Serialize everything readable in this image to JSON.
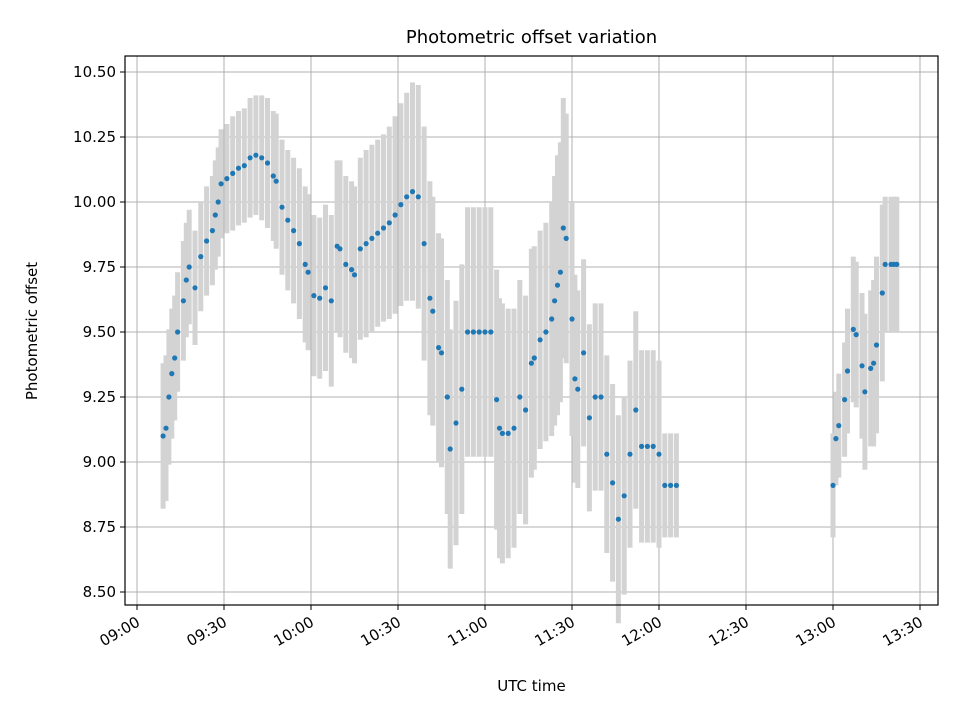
{
  "chart_data": {
    "type": "scatter",
    "title": "Photometric offset variation",
    "xlabel": "UTC time",
    "ylabel": "Photometric offset",
    "x_ticks": [
      "09:00",
      "09:30",
      "10:00",
      "10:30",
      "11:00",
      "11:30",
      "12:00",
      "12:30",
      "13:00",
      "13:30"
    ],
    "xlim": [
      "09:00",
      "13:30"
    ],
    "y_ticks": [
      "8.50",
      "8.75",
      "9.00",
      "9.25",
      "9.50",
      "9.75",
      "10.00",
      "10.25",
      "10.50"
    ],
    "ylim": [
      8.5,
      10.5
    ],
    "grid": true,
    "colors": {
      "points": "#1f77b4",
      "error_bars": "#d3d3d3",
      "grid": "#b0b0b0"
    },
    "series": [
      {
        "x": [
          "09:09",
          "09:10",
          "09:11",
          "09:12",
          "09:13",
          "09:14",
          "09:16",
          "09:17",
          "09:18",
          "09:20",
          "09:22",
          "09:24",
          "09:26",
          "09:27",
          "09:28",
          "09:29",
          "09:31",
          "09:33",
          "09:35",
          "09:37",
          "09:39",
          "09:41",
          "09:43",
          "09:45",
          "09:47",
          "09:48",
          "09:50",
          "09:52",
          "09:54",
          "09:56",
          "09:58",
          "09:59",
          "10:01",
          "10:03",
          "10:05",
          "10:07",
          "10:09",
          "10:10",
          "10:12",
          "10:14",
          "10:15",
          "10:17",
          "10:19",
          "10:21",
          "10:23",
          "10:25",
          "10:27",
          "10:29",
          "10:31",
          "10:33",
          "10:35",
          "10:37",
          "10:39",
          "10:41",
          "10:42",
          "10:44",
          "10:45",
          "10:47",
          "10:48",
          "10:50",
          "10:52",
          "10:54",
          "10:56",
          "10:58",
          "11:00",
          "11:02",
          "11:04",
          "11:05",
          "11:06",
          "11:08",
          "11:10",
          "11:12",
          "11:14",
          "11:16",
          "11:17",
          "11:19",
          "11:21",
          "11:23",
          "11:24",
          "11:25",
          "11:26",
          "11:27",
          "11:28",
          "11:30",
          "11:31",
          "11:32",
          "11:34",
          "11:36",
          "11:38",
          "11:40",
          "11:42",
          "11:44",
          "11:46",
          "11:48",
          "11:50",
          "11:52",
          "11:54",
          "11:56",
          "11:58",
          "12:00",
          "12:02",
          "12:04",
          "12:06",
          "13:00",
          "13:01",
          "13:02",
          "13:04",
          "13:05",
          "13:07",
          "13:08",
          "13:10",
          "13:11",
          "13:13",
          "13:14",
          "13:15",
          "13:17",
          "13:18",
          "13:20",
          "13:21",
          "13:22"
        ],
        "y": [
          9.1,
          9.13,
          9.25,
          9.34,
          9.4,
          9.5,
          9.62,
          9.7,
          9.75,
          9.67,
          9.79,
          9.85,
          9.89,
          9.95,
          10.0,
          10.07,
          10.09,
          10.11,
          10.13,
          10.14,
          10.17,
          10.18,
          10.17,
          10.15,
          10.1,
          10.08,
          9.98,
          9.93,
          9.89,
          9.84,
          9.76,
          9.73,
          9.64,
          9.63,
          9.67,
          9.62,
          9.83,
          9.82,
          9.76,
          9.74,
          9.72,
          9.82,
          9.84,
          9.86,
          9.88,
          9.9,
          9.92,
          9.95,
          9.99,
          10.02,
          10.04,
          10.02,
          9.84,
          9.63,
          9.58,
          9.44,
          9.42,
          9.25,
          9.05,
          9.15,
          9.28,
          9.5,
          9.5,
          9.5,
          9.5,
          9.5,
          9.24,
          9.13,
          9.11,
          9.11,
          9.13,
          9.25,
          9.2,
          9.38,
          9.4,
          9.47,
          9.5,
          9.55,
          9.62,
          9.68,
          9.73,
          9.9,
          9.86,
          9.55,
          9.32,
          9.28,
          9.42,
          9.17,
          9.25,
          9.25,
          9.03,
          8.92,
          8.78,
          8.87,
          9.03,
          9.2,
          9.06,
          9.06,
          9.06,
          9.03,
          8.91,
          8.91,
          8.91,
          8.91,
          9.09,
          9.14,
          9.24,
          9.35,
          9.51,
          9.49,
          9.37,
          9.27,
          9.36,
          9.38,
          9.45,
          9.65,
          9.76,
          9.76,
          9.76,
          9.76
        ],
        "error": [
          0.28,
          0.28,
          0.26,
          0.25,
          0.24,
          0.23,
          0.23,
          0.22,
          0.22,
          0.22,
          0.21,
          0.21,
          0.21,
          0.21,
          0.21,
          0.21,
          0.21,
          0.22,
          0.22,
          0.22,
          0.23,
          0.23,
          0.24,
          0.25,
          0.25,
          0.26,
          0.26,
          0.27,
          0.28,
          0.29,
          0.3,
          0.3,
          0.31,
          0.31,
          0.32,
          0.33,
          0.33,
          0.34,
          0.34,
          0.34,
          0.34,
          0.35,
          0.36,
          0.36,
          0.36,
          0.36,
          0.37,
          0.38,
          0.39,
          0.4,
          0.42,
          0.43,
          0.45,
          0.45,
          0.44,
          0.44,
          0.44,
          0.45,
          0.46,
          0.47,
          0.48,
          0.48,
          0.48,
          0.48,
          0.48,
          0.48,
          0.5,
          0.5,
          0.5,
          0.48,
          0.46,
          0.45,
          0.44,
          0.44,
          0.43,
          0.42,
          0.42,
          0.45,
          0.48,
          0.5,
          0.5,
          0.5,
          0.48,
          0.45,
          0.4,
          0.38,
          0.36,
          0.36,
          0.36,
          0.36,
          0.38,
          0.38,
          0.4,
          0.38,
          0.36,
          0.38,
          0.37,
          0.37,
          0.37,
          0.36,
          0.2,
          0.2,
          0.2,
          0.2,
          0.18,
          0.2,
          0.22,
          0.24,
          0.28,
          0.28,
          0.28,
          0.3,
          0.3,
          0.32,
          0.34,
          0.34,
          0.26,
          0.26,
          0.26,
          0.26
        ]
      }
    ]
  }
}
